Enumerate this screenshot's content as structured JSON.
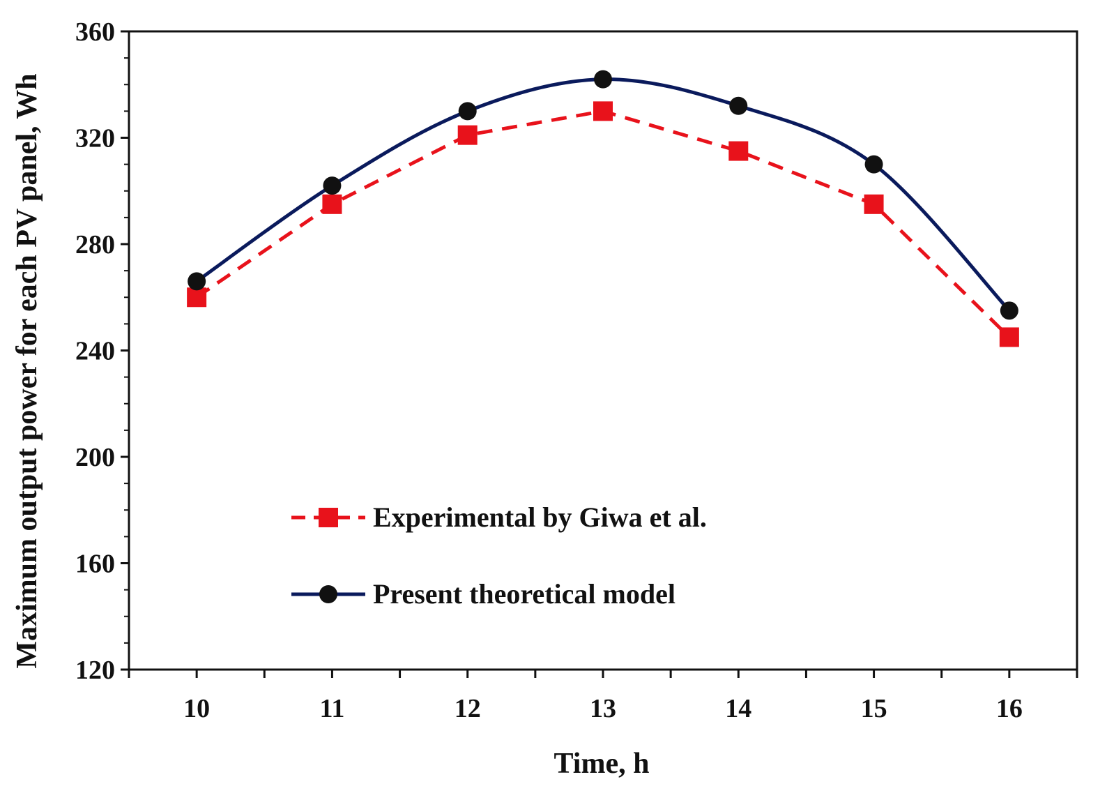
{
  "chart_data": {
    "type": "line",
    "title": "",
    "xlabel": "Time, h",
    "ylabel": "Maximum output power for each PV panel, Wh",
    "x": [
      10,
      11,
      12,
      13,
      14,
      15,
      16
    ],
    "xlim": [
      9.5,
      16.5
    ],
    "ylim": [
      120,
      360
    ],
    "yticks": [
      120,
      160,
      200,
      240,
      280,
      320,
      360
    ],
    "xticks": [
      10,
      11,
      12,
      13,
      14,
      15,
      16
    ],
    "grid": false,
    "legend_position": "center-left",
    "series": [
      {
        "name": "Experimental by Giwa et al.",
        "values": [
          260,
          295,
          321,
          330,
          315,
          295,
          245
        ],
        "color": "#e8121b",
        "line_style": "dashed",
        "marker": "square",
        "smooth": false
      },
      {
        "name": "Present theoretical model",
        "values": [
          266,
          302,
          330,
          342,
          332,
          310,
          255
        ],
        "color": "#0a1a5c",
        "line_style": "solid",
        "marker": "circle",
        "smooth": true
      }
    ]
  }
}
